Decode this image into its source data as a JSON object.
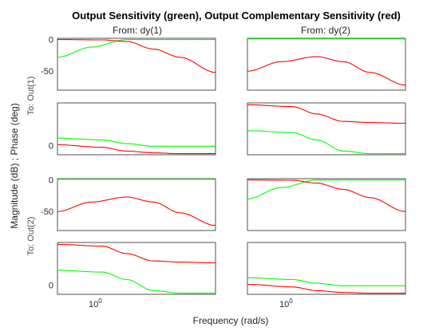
{
  "chart_data": {
    "type": "line",
    "title": "Output Sensitivity (green), Output Complementary Sensitivity (red)",
    "xlabel": "Frequency (rad/s)",
    "ylabel": "Magnitude (dB) ; Phase (deg)",
    "x_scale": "log",
    "xlim": [
      0.25,
      15
    ],
    "x_tick_labels": [
      "10",
      "0"
    ],
    "columns": [
      "From: dy(1)",
      "From: dy(2)"
    ],
    "rows": [
      "To: Out(1)",
      "To: Out(2)"
    ],
    "colors": {
      "sensitivity": "#00ff00",
      "complementary": "#ff0000"
    },
    "panels": [
      {
        "id": "r1c1-mag",
        "ylim": [
          -80,
          2
        ],
        "yticks": [
          0,
          -50
        ],
        "series": [
          {
            "color": "#00ff00",
            "x": [
              0.25,
              0.6,
              1.5,
              3,
              15
            ],
            "y": [
              -28,
              -12,
              0,
              0,
              0
            ]
          },
          {
            "color": "#ff0000",
            "x": [
              0.25,
              0.8,
              1.5,
              3,
              6,
              15
            ],
            "y": [
              0,
              -0.5,
              -3,
              -15,
              -28,
              -52
            ]
          }
        ]
      },
      {
        "id": "r1c2-mag",
        "ylim": [
          -80,
          2
        ],
        "yticks": [],
        "series": [
          {
            "color": "#00ff00",
            "x": [
              0.25,
              15
            ],
            "y": [
              1,
              1
            ]
          },
          {
            "color": "#ff0000",
            "x": [
              0.25,
              0.6,
              1.5,
              3,
              6,
              15
            ],
            "y": [
              -50,
              -35,
              -27,
              -35,
              -52,
              -72
            ]
          }
        ]
      },
      {
        "id": "r1c1-phase",
        "ylim": [
          -25,
          115
        ],
        "yticks": [
          0
        ],
        "series": [
          {
            "color": "#00ff00",
            "x": [
              0.25,
              0.8,
              1.5,
              3,
              6,
              15
            ],
            "y": [
              20,
              15,
              5,
              -2,
              -2,
              -2
            ]
          },
          {
            "color": "#ff0000",
            "x": [
              0.25,
              0.8,
              1.5,
              3,
              6,
              15
            ],
            "y": [
              2,
              -5,
              -15,
              -20,
              -22,
              -22
            ]
          }
        ]
      },
      {
        "id": "r1c2-phase",
        "ylim": [
          -25,
          115
        ],
        "yticks": [],
        "series": [
          {
            "color": "#00ff00",
            "x": [
              0.25,
              0.8,
              1.5,
              3,
              6,
              15
            ],
            "y": [
              40,
              35,
              15,
              -15,
              -22,
              -22
            ]
          },
          {
            "color": "#ff0000",
            "x": [
              0.25,
              0.8,
              1.5,
              3,
              6,
              15
            ],
            "y": [
              110,
              105,
              85,
              65,
              62,
              60
            ]
          }
        ]
      },
      {
        "id": "r2c1-mag",
        "ylim": [
          -80,
          2
        ],
        "yticks": [
          0,
          -50
        ],
        "series": [
          {
            "color": "#00ff00",
            "x": [
              0.25,
              15
            ],
            "y": [
              1,
              1
            ]
          },
          {
            "color": "#ff0000",
            "x": [
              0.25,
              0.6,
              1.5,
              3,
              6,
              15
            ],
            "y": [
              -50,
              -35,
              -27,
              -35,
              -52,
              -72
            ]
          }
        ]
      },
      {
        "id": "r2c2-mag",
        "ylim": [
          -80,
          2
        ],
        "yticks": [],
        "series": [
          {
            "color": "#00ff00",
            "x": [
              0.25,
              0.6,
              1.5,
              3,
              15
            ],
            "y": [
              -30,
              -12,
              0,
              0,
              0
            ]
          },
          {
            "color": "#ff0000",
            "x": [
              0.25,
              0.8,
              1.5,
              3,
              6,
              15
            ],
            "y": [
              0,
              -0.5,
              -5,
              -15,
              -28,
              -50
            ]
          }
        ]
      },
      {
        "id": "r2c1-phase",
        "ylim": [
          -25,
          115
        ],
        "yticks": [
          0
        ],
        "series": [
          {
            "color": "#00ff00",
            "x": [
              0.25,
              0.8,
              1.5,
              3,
              6,
              15
            ],
            "y": [
              40,
              35,
              15,
              -15,
              -22,
              -22
            ]
          },
          {
            "color": "#ff0000",
            "x": [
              0.25,
              0.8,
              1.5,
              3,
              6,
              15
            ],
            "y": [
              110,
              105,
              85,
              65,
              62,
              60
            ]
          }
        ]
      },
      {
        "id": "r2c2-phase",
        "ylim": [
          -25,
          115
        ],
        "yticks": [],
        "series": [
          {
            "color": "#00ff00",
            "x": [
              0.25,
              0.8,
              1.5,
              3,
              6,
              15
            ],
            "y": [
              20,
              15,
              5,
              -2,
              -2,
              -2
            ]
          },
          {
            "color": "#ff0000",
            "x": [
              0.25,
              0.8,
              1.5,
              3,
              6,
              15
            ],
            "y": [
              2,
              -5,
              -15,
              -20,
              -22,
              -22
            ]
          }
        ]
      }
    ]
  }
}
